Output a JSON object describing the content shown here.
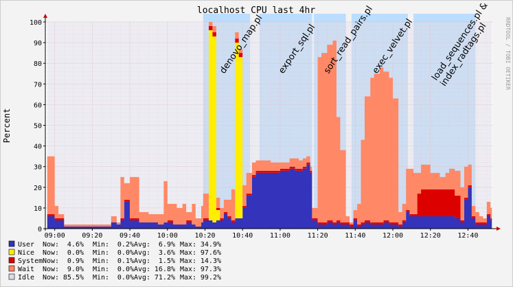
{
  "chart_data": {
    "type": "area",
    "title": "localhost CPU last 4hr",
    "ylabel": "Percent",
    "watermark": "RRDTOOL / TOBI OETIKER",
    "ylim": [
      0,
      100
    ],
    "yticks": [
      0,
      10,
      20,
      30,
      40,
      50,
      60,
      70,
      80,
      90,
      100
    ],
    "xlim": [
      "08:55",
      "12:53"
    ],
    "xticks": [
      "09:00",
      "09:20",
      "09:40",
      "10:00",
      "10:20",
      "10:40",
      "11:00",
      "11:20",
      "11:40",
      "12:00",
      "12:20",
      "12:40"
    ],
    "grid": true,
    "stacked": true,
    "colors": {
      "background": "#f3f3f3",
      "plot": "#ffffff",
      "grid": "#e8a0a0",
      "user": "#3333bb",
      "nice": "#ffee00",
      "system": "#dd0000",
      "wait": "#ff8866",
      "idle": "#dddde8",
      "job_band": "#bbddff"
    },
    "job_bands": [
      {
        "start": "10:19",
        "end": "10:44",
        "label": "denovo_map.pl"
      },
      {
        "start": "10:49",
        "end": "11:17",
        "label": "export_sql.pl"
      },
      {
        "start": "11:18",
        "end": "11:35",
        "label": "sort_read_pairs.pl"
      },
      {
        "start": "11:38",
        "end": "12:08",
        "label": "exec_velvet.pl"
      },
      {
        "start": "12:11",
        "end": "12:38",
        "label": "load_sequences.pl &\nindex_radtags.pl"
      },
      {
        "start": "12:38",
        "end": "12:44",
        "label": ""
      }
    ],
    "x": [
      "08:56",
      "09:00",
      "09:02",
      "09:05",
      "09:10",
      "09:15",
      "09:20",
      "09:25",
      "09:30",
      "09:33",
      "09:35",
      "09:37",
      "09:40",
      "09:45",
      "09:50",
      "09:55",
      "09:58",
      "10:00",
      "10:03",
      "10:05",
      "10:08",
      "10:10",
      "10:13",
      "10:15",
      "10:18",
      "10:19",
      "10:22",
      "10:24",
      "10:26",
      "10:28",
      "10:30",
      "10:32",
      "10:34",
      "10:36",
      "10:38",
      "10:40",
      "10:42",
      "10:45",
      "10:47",
      "10:50",
      "10:55",
      "11:00",
      "11:05",
      "11:08",
      "11:10",
      "11:12",
      "11:14",
      "11:16",
      "11:17",
      "11:20",
      "11:22",
      "11:25",
      "11:28",
      "11:30",
      "11:32",
      "11:35",
      "11:37",
      "11:39",
      "11:41",
      "11:43",
      "11:45",
      "11:48",
      "11:50",
      "11:53",
      "11:55",
      "11:58",
      "12:00",
      "12:03",
      "12:05",
      "12:07",
      "12:09",
      "12:11",
      "12:13",
      "12:15",
      "12:20",
      "12:25",
      "12:28",
      "12:30",
      "12:33",
      "12:36",
      "12:38",
      "12:40",
      "12:42",
      "12:44",
      "12:46",
      "12:48",
      "12:50",
      "12:52"
    ],
    "series": [
      {
        "name": "User",
        "now": "4.6%",
        "min": "0.2%",
        "avg": "6.9%",
        "max": "34.9%",
        "values": [
          6,
          4,
          4,
          1,
          1,
          1,
          1,
          1,
          3,
          2,
          4,
          13,
          4,
          3,
          3,
          2,
          3,
          3,
          2,
          2,
          2,
          3,
          2,
          1,
          3,
          4,
          4,
          3,
          4,
          4,
          7,
          5,
          3,
          5,
          5,
          10,
          16,
          25,
          27,
          27,
          27,
          28,
          29,
          28,
          28,
          29,
          31,
          27,
          4,
          2,
          2,
          3,
          2,
          3,
          2,
          2,
          1,
          4,
          1,
          2,
          3,
          2,
          2,
          2,
          3,
          2,
          2,
          1,
          3,
          8,
          6,
          6,
          6,
          6,
          6,
          6,
          6,
          6,
          5,
          3,
          14,
          20,
          5,
          2,
          2,
          2,
          6,
          4
        ]
      },
      {
        "name": "Nice",
        "now": "0.0%",
        "min": "0.0%",
        "avg": "3.6%",
        "max": "97.6%",
        "values": [
          0,
          0,
          0,
          0,
          0,
          0,
          0,
          0,
          0,
          0,
          0,
          0,
          0,
          0,
          0,
          0,
          0,
          0,
          0,
          0,
          0,
          0,
          0,
          0,
          0,
          0,
          92,
          90,
          5,
          0,
          0,
          0,
          0,
          85,
          78,
          0,
          0,
          0,
          0,
          0,
          0,
          0,
          0,
          0,
          0,
          0,
          0,
          0,
          0,
          0,
          0,
          0,
          0,
          0,
          0,
          0,
          0,
          0,
          0,
          0,
          0,
          0,
          0,
          0,
          0,
          0,
          0,
          0,
          0,
          0,
          0,
          0,
          0,
          0,
          0,
          0,
          0,
          0,
          0,
          0,
          0,
          0,
          0,
          0,
          0,
          0,
          0,
          0
        ]
      },
      {
        "name": "System",
        "now": "0.9%",
        "min": "0.1%",
        "avg": "1.5%",
        "max": "14.3%",
        "values": [
          1,
          1,
          1,
          0,
          0,
          0,
          0,
          0,
          0,
          0,
          1,
          1,
          1,
          0,
          0,
          0,
          0,
          1,
          0,
          0,
          0,
          1,
          0,
          0,
          0,
          1,
          2,
          2,
          1,
          1,
          1,
          1,
          1,
          2,
          2,
          1,
          1,
          1,
          1,
          1,
          1,
          1,
          1,
          1,
          1,
          1,
          1,
          1,
          1,
          1,
          1,
          1,
          1,
          1,
          1,
          1,
          1,
          1,
          1,
          1,
          1,
          1,
          1,
          1,
          1,
          1,
          1,
          1,
          1,
          1,
          1,
          1,
          11,
          13,
          13,
          13,
          13,
          13,
          11,
          1,
          1,
          1,
          1,
          1,
          1,
          1,
          1,
          1
        ]
      },
      {
        "name": "Wait",
        "now": "9.0%",
        "min": "0.0%",
        "avg": "16.8%",
        "max": "97.3%",
        "values": [
          28,
          6,
          2,
          1,
          1,
          1,
          1,
          1,
          3,
          1,
          20,
          8,
          20,
          5,
          4,
          5,
          20,
          8,
          10,
          8,
          10,
          4,
          10,
          4,
          8,
          12,
          2,
          3,
          5,
          5,
          6,
          8,
          15,
          3,
          2,
          10,
          10,
          6,
          5,
          5,
          4,
          3,
          4,
          5,
          4,
          4,
          3,
          2,
          5,
          80,
          82,
          85,
          88,
          50,
          35,
          3,
          1,
          4,
          10,
          40,
          60,
          70,
          72,
          75,
          72,
          70,
          60,
          6,
          8,
          20,
          22,
          20,
          10,
          12,
          8,
          6,
          8,
          10,
          12,
          16,
          15,
          10,
          5,
          5,
          3,
          2,
          6,
          5
        ]
      },
      {
        "name": "Idle",
        "now": "85.5%",
        "min": "0.0%",
        "avg": "71.2%",
        "max": "99.2%",
        "values": [
          65,
          89,
          93,
          98,
          98,
          98,
          98,
          98,
          94,
          97,
          75,
          78,
          75,
          92,
          93,
          93,
          77,
          88,
          88,
          90,
          88,
          92,
          88,
          95,
          89,
          83,
          0,
          2,
          85,
          90,
          86,
          86,
          81,
          5,
          13,
          79,
          73,
          68,
          67,
          67,
          68,
          68,
          66,
          66,
          67,
          66,
          65,
          70,
          90,
          17,
          15,
          11,
          9,
          46,
          62,
          94,
          97,
          91,
          88,
          57,
          36,
          27,
          25,
          22,
          24,
          27,
          37,
          92,
          88,
          71,
          71,
          73,
          73,
          69,
          73,
          75,
          73,
          71,
          72,
          80,
          70,
          69,
          89,
          92,
          94,
          95,
          87,
          90
        ]
      }
    ]
  }
}
